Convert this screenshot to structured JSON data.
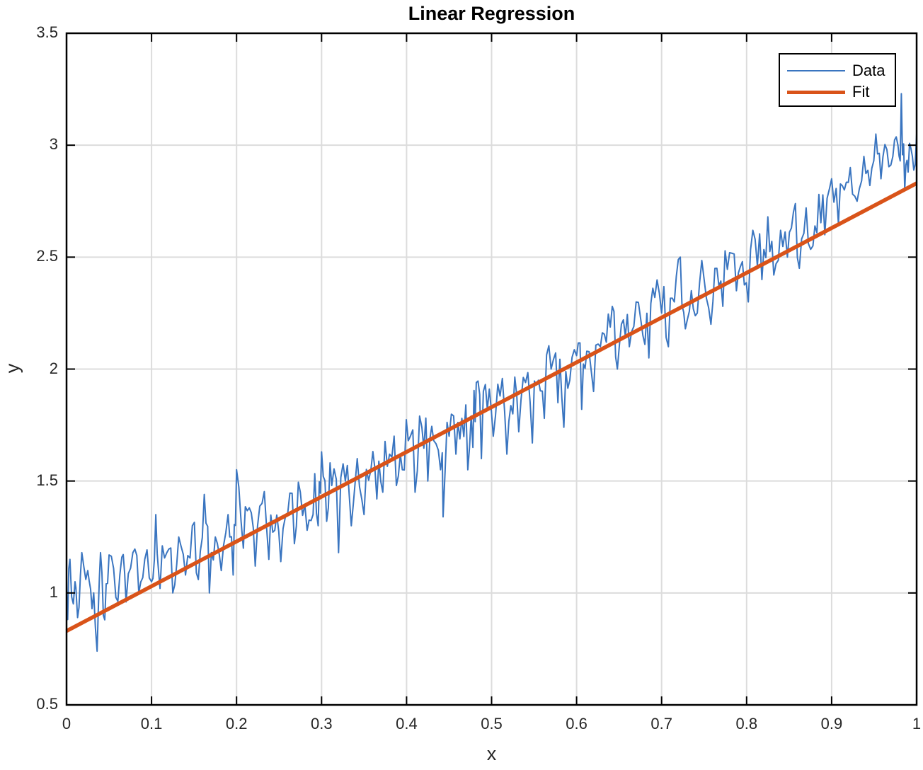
{
  "chart_data": {
    "type": "line",
    "title": "Linear Regression",
    "xlabel": "x",
    "ylabel": "y",
    "xlim": [
      0,
      1
    ],
    "ylim": [
      0.5,
      3.5
    ],
    "grid": true,
    "legend_position": "northeast",
    "x_ticks": [
      "0",
      "0.1",
      "0.2",
      "0.3",
      "0.4",
      "0.5",
      "0.6",
      "0.7",
      "0.8",
      "0.9",
      "1"
    ],
    "y_ticks": [
      "0.5",
      "1",
      "1.5",
      "2",
      "2.5",
      "3",
      "3.5"
    ],
    "series": [
      {
        "name": "Data",
        "color": "#3a75c0",
        "line_width": 2,
        "note": "noisy samples around y = 2x + 1 (approx.); sampled anchor points",
        "x": [
          0.0,
          0.004,
          0.01,
          0.013,
          0.018,
          0.025,
          0.03,
          0.036,
          0.04,
          0.045,
          0.05,
          0.058,
          0.065,
          0.07,
          0.078,
          0.085,
          0.092,
          0.1,
          0.105,
          0.11,
          0.118,
          0.125,
          0.132,
          0.14,
          0.148,
          0.155,
          0.162,
          0.168,
          0.175,
          0.182,
          0.19,
          0.196,
          0.2,
          0.208,
          0.215,
          0.222,
          0.23,
          0.238,
          0.245,
          0.252,
          0.26,
          0.268,
          0.275,
          0.283,
          0.29,
          0.296,
          0.3,
          0.306,
          0.312,
          0.32,
          0.328,
          0.335,
          0.342,
          0.35,
          0.358,
          0.365,
          0.372,
          0.38,
          0.388,
          0.395,
          0.402,
          0.41,
          0.418,
          0.425,
          0.432,
          0.44,
          0.443,
          0.45,
          0.458,
          0.465,
          0.472,
          0.478,
          0.482,
          0.488,
          0.495,
          0.502,
          0.51,
          0.518,
          0.525,
          0.532,
          0.54,
          0.548,
          0.555,
          0.562,
          0.57,
          0.578,
          0.585,
          0.592,
          0.6,
          0.606,
          0.612,
          0.62,
          0.628,
          0.635,
          0.642,
          0.648,
          0.655,
          0.662,
          0.67,
          0.678,
          0.685,
          0.692,
          0.7,
          0.708,
          0.715,
          0.722,
          0.728,
          0.735,
          0.742,
          0.75,
          0.758,
          0.765,
          0.772,
          0.78,
          0.788,
          0.795,
          0.802,
          0.81,
          0.818,
          0.825,
          0.832,
          0.84,
          0.848,
          0.855,
          0.862,
          0.87,
          0.878,
          0.885,
          0.892,
          0.9,
          0.908,
          0.915,
          0.922,
          0.93,
          0.938,
          0.945,
          0.952,
          0.958,
          0.965,
          0.972,
          0.978,
          0.982,
          0.986,
          0.99,
          0.995,
          1.0
        ],
        "y": [
          1.0,
          1.15,
          1.05,
          0.89,
          1.18,
          1.1,
          0.93,
          0.74,
          1.18,
          0.88,
          1.17,
          0.98,
          1.16,
          0.96,
          1.18,
          1.0,
          1.15,
          1.05,
          1.35,
          1.02,
          1.18,
          1.0,
          1.25,
          1.08,
          1.3,
          1.06,
          1.44,
          1.0,
          1.25,
          1.1,
          1.35,
          1.08,
          1.55,
          1.2,
          1.38,
          1.12,
          1.4,
          1.15,
          1.28,
          1.14,
          1.35,
          1.22,
          1.45,
          1.28,
          1.35,
          1.3,
          1.63,
          1.32,
          1.48,
          1.18,
          1.5,
          1.3,
          1.6,
          1.35,
          1.55,
          1.42,
          1.45,
          1.62,
          1.48,
          1.55,
          1.68,
          1.45,
          1.74,
          1.5,
          1.68,
          1.55,
          1.34,
          1.7,
          1.62,
          1.78,
          1.55,
          1.65,
          1.94,
          1.6,
          1.82,
          1.7,
          1.88,
          1.62,
          1.8,
          1.72,
          1.94,
          1.67,
          1.95,
          1.78,
          2.0,
          1.85,
          1.74,
          1.95,
          2.06,
          1.82,
          2.08,
          1.9,
          2.1,
          2.12,
          2.28,
          2.0,
          2.22,
          2.1,
          2.3,
          2.15,
          2.05,
          2.32,
          2.25,
          2.1,
          2.3,
          2.5,
          2.18,
          2.35,
          2.25,
          2.4,
          2.2,
          2.45,
          2.28,
          2.52,
          2.35,
          2.48,
          2.3,
          2.58,
          2.4,
          2.68,
          2.42,
          2.62,
          2.5,
          2.7,
          2.45,
          2.72,
          2.55,
          2.78,
          2.6,
          2.85,
          2.65,
          2.8,
          2.9,
          2.75,
          2.95,
          2.82,
          3.05,
          2.85,
          2.98,
          2.95,
          3.0,
          3.23,
          2.8,
          2.88,
          2.95,
          3.05
        ]
      },
      {
        "name": "Fit",
        "color": "#d95319",
        "line_width": 5,
        "x": [
          0,
          1
        ],
        "y": [
          0.83,
          2.83
        ]
      }
    ]
  },
  "legend": {
    "items": [
      {
        "label": "Data",
        "color": "#3a75c0"
      },
      {
        "label": "Fit",
        "color": "#d95319"
      }
    ]
  }
}
